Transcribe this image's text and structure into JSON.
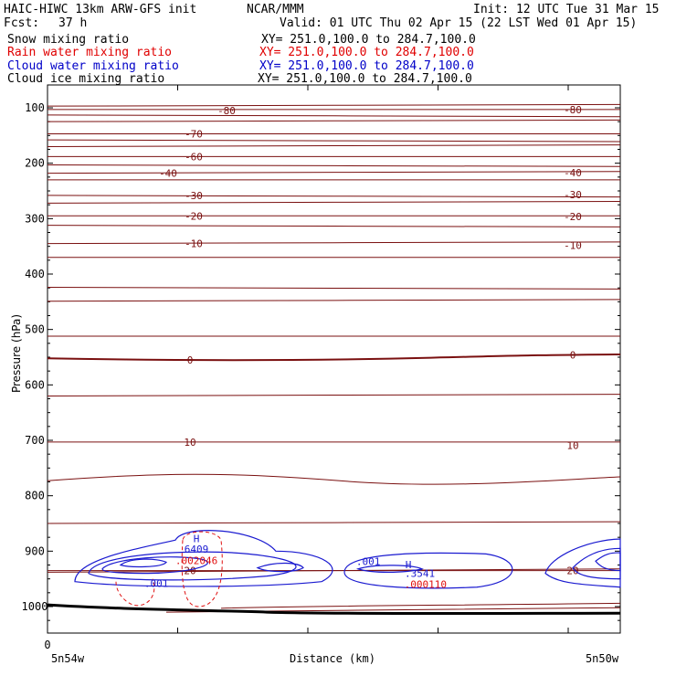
{
  "header": {
    "model": "HAIC-HIWC 13km ARW-GFS init",
    "org": "NCAR/MMM",
    "init": "Init: 12 UTC Tue 31 Mar 15",
    "fcst_label": "Fcst:",
    "fcst_value": "37 h",
    "valid": "Valid: 01 UTC Thu 02 Apr 15 (22 LST Wed 01 Apr 15)"
  },
  "legend": [
    {
      "name": "Snow mixing ratio",
      "xy": "XY= 251.0,100.0 to 284.7,100.0",
      "color": "#000000"
    },
    {
      "name": "Rain water mixing ratio",
      "xy": "XY= 251.0,100.0 to 284.7,100.0",
      "color": "#e00000"
    },
    {
      "name": "Cloud water mixing ratio",
      "xy": "XY= 251.0,100.0 to 284.7,100.0",
      "color": "#0000c8"
    },
    {
      "name": "Cloud ice mixing ratio",
      "xy": "XY= 251.0,100.0 to 284.7,100.0",
      "color": "#000000"
    }
  ],
  "colors": {
    "temperature": "#7a1010",
    "cloud_water": "#1a1ad0",
    "rain": "#e01010",
    "ground": "#000000"
  },
  "chart_data": {
    "type": "cross-section contour",
    "ylabel": "Pressure (hPa)",
    "xlabel": "Distance (km)",
    "y_ticks": [
      "100",
      "200",
      "300",
      "400",
      "500",
      "600",
      "700",
      "800",
      "900",
      "1000"
    ],
    "x_tick_labels": [
      {
        "text": "0"
      }
    ],
    "x_end_labels": [
      "5n54w",
      "5n50w"
    ],
    "ylim": [
      1050,
      65
    ],
    "temperature_labels_left": [
      {
        "value": "-80",
        "p": 105
      },
      {
        "value": "-70",
        "p": 147
      },
      {
        "value": "-60",
        "p": 188
      },
      {
        "value": "-40",
        "p": 218
      },
      {
        "value": "-30",
        "p": 258
      },
      {
        "value": "-20",
        "p": 295
      },
      {
        "value": "-10",
        "p": 345
      },
      {
        "value": "0",
        "p": 555
      },
      {
        "value": "10",
        "p": 703
      },
      {
        "value": "20",
        "p": 935
      }
    ],
    "temperature_labels_right": [
      {
        "value": "-80",
        "p": 103
      },
      {
        "value": "-40",
        "p": 217
      },
      {
        "value": "-30",
        "p": 257
      },
      {
        "value": "-20",
        "p": 296
      },
      {
        "value": "-10",
        "p": 348
      },
      {
        "value": "0",
        "p": 546
      },
      {
        "value": "10",
        "p": 709
      },
      {
        "value": "20",
        "p": 935
      }
    ],
    "annotations": [
      {
        "text": "H",
        "color": "#1a1ad0",
        "x": 0.26,
        "p": 877
      },
      {
        "text": "6409",
        "color": "#1a1ad0",
        "x": 0.26,
        "p": 896
      },
      {
        "text": ".002046",
        "color": "#e01010",
        "x": 0.26,
        "p": 917
      },
      {
        "text": ".001",
        "color": "#1a1ad0",
        "x": 0.19,
        "p": 958
      },
      {
        "text": ".001",
        "color": "#1a1ad0",
        "x": 0.56,
        "p": 918
      },
      {
        "text": "H",
        "color": "#1a1ad0",
        "x": 0.63,
        "p": 924
      },
      {
        "text": ".3541",
        "color": "#1a1ad0",
        "x": 0.65,
        "p": 940
      },
      {
        "text": ".000110",
        "color": "#e01010",
        "x": 0.66,
        "p": 960
      }
    ]
  }
}
